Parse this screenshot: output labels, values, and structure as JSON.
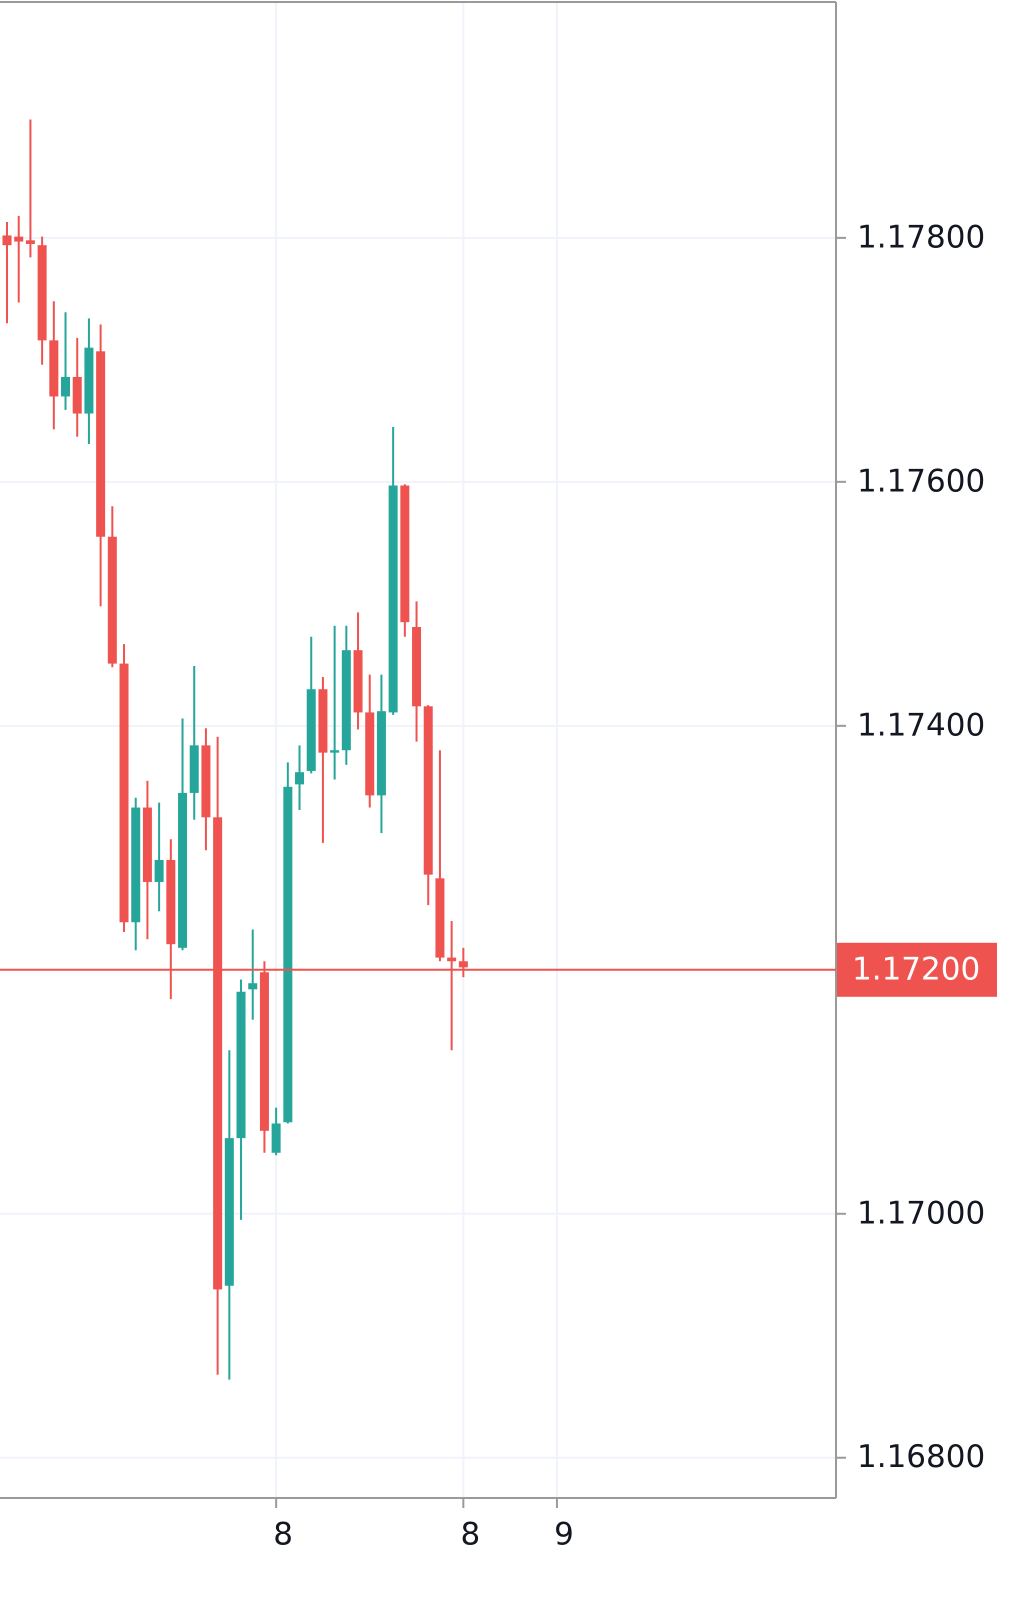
{
  "chart_data": {
    "type": "candlestick",
    "x": [
      0,
      1,
      2,
      3,
      4,
      5,
      6,
      7,
      8,
      9,
      10,
      11,
      12,
      13,
      14,
      15,
      16,
      17,
      18,
      19,
      20,
      21,
      22,
      23,
      24,
      25,
      26,
      27,
      28,
      29,
      30,
      31,
      32,
      33,
      34,
      35,
      36,
      37,
      38,
      39
    ],
    "open": [
      1.17802,
      1.17801,
      1.17798,
      1.17794,
      1.17716,
      1.1767,
      1.17686,
      1.17656,
      1.17707,
      1.17555,
      1.17451,
      1.17239,
      1.17333,
      1.17272,
      1.1729,
      1.17218,
      1.17345,
      1.17384,
      1.17325,
      1.16941,
      1.17062,
      1.17184,
      1.17198,
      1.1705,
      1.17075,
      1.17352,
      1.17363,
      1.1743,
      1.17378,
      1.1738,
      1.17462,
      1.17411,
      1.17343,
      1.17411,
      1.17597,
      1.17481,
      1.17416,
      1.17275,
      1.1721,
      1.17207
    ],
    "high": [
      1.17813,
      1.17818,
      1.17897,
      1.17801,
      1.17748,
      1.17739,
      1.17718,
      1.17734,
      1.17729,
      1.1758,
      1.17467,
      1.17341,
      1.17355,
      1.17337,
      1.17307,
      1.17406,
      1.17449,
      1.17398,
      1.17391,
      1.17134,
      1.17192,
      1.17233,
      1.17207,
      1.17087,
      1.1737,
      1.17384,
      1.17473,
      1.1744,
      1.17482,
      1.17482,
      1.17493,
      1.17442,
      1.17442,
      1.17645,
      1.17598,
      1.17502,
      1.17417,
      1.1738,
      1.1724,
      1.17218
    ],
    "low": [
      1.1773,
      1.17747,
      1.17784,
      1.17696,
      1.17643,
      1.17659,
      1.17637,
      1.17631,
      1.17498,
      1.17448,
      1.17231,
      1.17216,
      1.17225,
      1.17248,
      1.17176,
      1.17216,
      1.17323,
      1.17298,
      1.16868,
      1.16864,
      1.16995,
      1.17159,
      1.1705,
      1.17048,
      1.17074,
      1.17331,
      1.17361,
      1.17304,
      1.17356,
      1.17368,
      1.17397,
      1.17333,
      1.17312,
      1.17409,
      1.17473,
      1.17387,
      1.17253,
      1.17207,
      1.17134,
      1.17194
    ],
    "close": [
      1.17794,
      1.17797,
      1.17795,
      1.17716,
      1.1767,
      1.17686,
      1.17656,
      1.1771,
      1.17555,
      1.17451,
      1.17239,
      1.17333,
      1.17272,
      1.1729,
      1.17221,
      1.17345,
      1.17384,
      1.17325,
      1.16938,
      1.17062,
      1.17182,
      1.17189,
      1.17068,
      1.17074,
      1.1735,
      1.17362,
      1.1743,
      1.17378,
      1.1738,
      1.17462,
      1.17411,
      1.17343,
      1.17412,
      1.17597,
      1.17485,
      1.17416,
      1.17278,
      1.1721,
      1.17207,
      1.17202
    ],
    "up_color": "#26a69a",
    "down_color": "#ef5350",
    "xlim": [
      -0.6,
      70.85
    ],
    "xticks": [
      {
        "value": 23,
        "label": "8"
      },
      {
        "value": 39,
        "label": "8"
      },
      {
        "value": 47,
        "label": "9"
      }
    ],
    "ylim": [
      1.16767,
      1.17995
    ],
    "yticks": [
      {
        "value": 1.178,
        "label": "1.17800"
      },
      {
        "value": 1.176,
        "label": "1.17600"
      },
      {
        "value": 1.174,
        "label": "1.17400"
      },
      {
        "value": 1.17,
        "label": "1.17000"
      },
      {
        "value": 1.168,
        "label": "1.16800"
      }
    ],
    "last_price": {
      "value": 1.172,
      "label": "1.17200"
    },
    "grid": true
  }
}
